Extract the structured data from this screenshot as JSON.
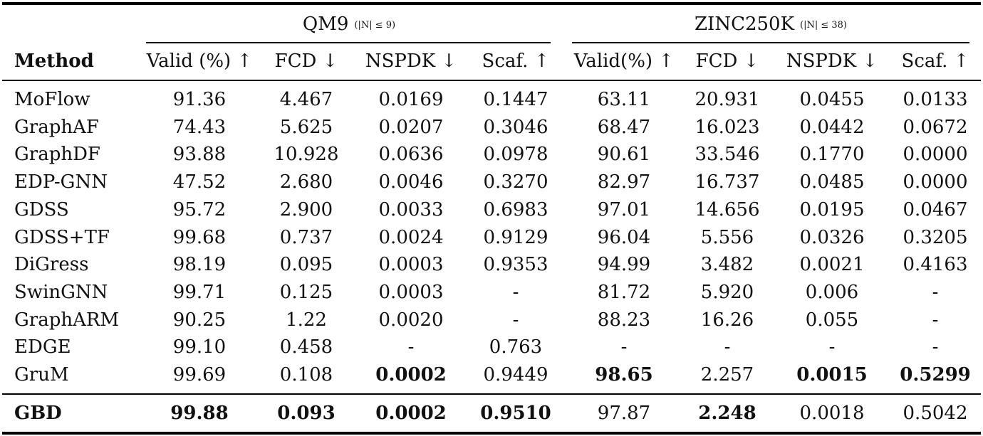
{
  "groups": [
    {
      "name": "QM9",
      "cond": "(|N| ≤ 9)"
    },
    {
      "name": "ZINC250K",
      "cond": "(|N| ≤ 38)"
    }
  ],
  "header": {
    "method": "Method",
    "columns": [
      "Valid (%) ↑",
      "FCD ↓",
      "NSPDK ↓",
      "Scaf. ↑",
      "Valid(%) ↑",
      "FCD ↓",
      "NSPDK ↓",
      "Scaf. ↑"
    ]
  },
  "rows": [
    {
      "method": "MoFlow",
      "values": [
        "91.36",
        "4.467",
        "0.0169",
        "0.1447",
        "63.11",
        "20.931",
        "0.0455",
        "0.0133"
      ],
      "bold": []
    },
    {
      "method": "GraphAF",
      "values": [
        "74.43",
        "5.625",
        "0.0207",
        "0.3046",
        "68.47",
        "16.023",
        "0.0442",
        "0.0672"
      ],
      "bold": []
    },
    {
      "method": "GraphDF",
      "values": [
        "93.88",
        "10.928",
        "0.0636",
        "0.0978",
        "90.61",
        "33.546",
        "0.1770",
        "0.0000"
      ],
      "bold": []
    },
    {
      "method": "EDP-GNN",
      "values": [
        "47.52",
        "2.680",
        "0.0046",
        "0.3270",
        "82.97",
        "16.737",
        "0.0485",
        "0.0000"
      ],
      "bold": []
    },
    {
      "method": "GDSS",
      "values": [
        "95.72",
        "2.900",
        "0.0033",
        "0.6983",
        "97.01",
        "14.656",
        "0.0195",
        "0.0467"
      ],
      "bold": []
    },
    {
      "method": "GDSS+TF",
      "values": [
        "99.68",
        "0.737",
        "0.0024",
        "0.9129",
        "96.04",
        "5.556",
        "0.0326",
        "0.3205"
      ],
      "bold": []
    },
    {
      "method": "DiGress",
      "values": [
        "98.19",
        "0.095",
        "0.0003",
        "0.9353",
        "94.99",
        "3.482",
        "0.0021",
        "0.4163"
      ],
      "bold": []
    },
    {
      "method": "SwinGNN",
      "values": [
        "99.71",
        "0.125",
        "0.0003",
        "-",
        "81.72",
        "5.920",
        "0.006",
        "-"
      ],
      "bold": []
    },
    {
      "method": "GraphARM",
      "values": [
        "90.25",
        "1.22",
        "0.0020",
        "-",
        "88.23",
        "16.26",
        "0.055",
        "-"
      ],
      "bold": []
    },
    {
      "method": "EDGE",
      "values": [
        "99.10",
        "0.458",
        "-",
        "0.763",
        "-",
        "-",
        "-",
        "-"
      ],
      "bold": []
    },
    {
      "method": "GruM",
      "values": [
        "99.69",
        "0.108",
        "0.0002",
        "0.9449",
        "98.65",
        "2.257",
        "0.0015",
        "0.5299"
      ],
      "bold": [
        2,
        4,
        6,
        7
      ]
    }
  ],
  "final_row": {
    "method": "GBD",
    "values": [
      "99.88",
      "0.093",
      "0.0002",
      "0.9510",
      "97.87",
      "2.248",
      "0.0018",
      "0.5042"
    ],
    "bold": [
      0,
      1,
      2,
      3,
      5
    ]
  }
}
